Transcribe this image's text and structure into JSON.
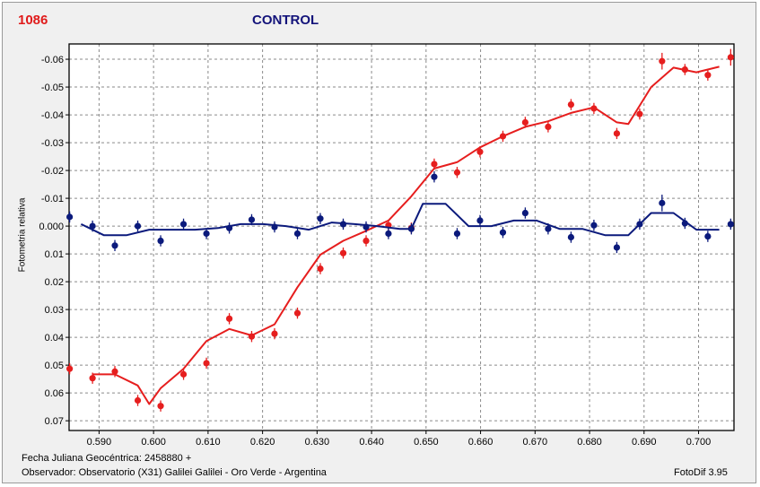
{
  "header": {
    "object_id": "1086",
    "title": "CONTROL"
  },
  "footer": {
    "jd_line": "Fecha Juliana Geocéntrica: 2458880 +",
    "observer_line": "Observador: Observatorio (X31) Galilei Galilei - Oro Verde - Argentina",
    "software": "FotoDif 3.95"
  },
  "colors": {
    "red_series": "#e61e1e",
    "blue_series": "#0b1a7c",
    "id_text": "#e01b1b",
    "title_text": "#13137a",
    "plot_background": "#ffffff",
    "grid": "#8a8a8a"
  },
  "chart_data": {
    "type": "scatter",
    "xlabel": "",
    "ylabel": "Fotometria relativa",
    "xlim": [
      0.5845,
      0.7065
    ],
    "ylim": [
      0.0735,
      -0.0655
    ],
    "y_inverted": true,
    "grid": true,
    "x_ticks": [
      0.59,
      0.6,
      0.61,
      0.62,
      0.63,
      0.64,
      0.65,
      0.66,
      0.67,
      0.68,
      0.69,
      0.7
    ],
    "x_tick_labels": [
      "0.590",
      "0.600",
      "0.610",
      "0.620",
      "0.630",
      "0.640",
      "0.650",
      "0.660",
      "0.670",
      "0.680",
      "0.690",
      "0.700"
    ],
    "y_ticks": [
      -0.06,
      -0.05,
      -0.04,
      -0.03,
      -0.02,
      -0.01,
      0.0,
      0.01,
      0.02,
      0.03,
      0.04,
      0.05,
      0.06,
      0.07
    ],
    "y_tick_labels": [
      "-0.06",
      "-0.05",
      "-0.04",
      "-0.03",
      "-0.02",
      "-0.01",
      "0.000",
      "0.01",
      "0.02",
      "0.03",
      "0.04",
      "0.05",
      "0.06",
      "0.07"
    ],
    "series": [
      {
        "color": "#e61e1e",
        "x": [
          0.5846,
          0.5888,
          0.5929,
          0.5971,
          0.6013,
          0.6055,
          0.6097,
          0.6139,
          0.618,
          0.6222,
          0.6264,
          0.6306,
          0.6348,
          0.639,
          0.6431,
          0.6473,
          0.6515,
          0.6557,
          0.6599,
          0.6641,
          0.6682,
          0.6724,
          0.6766,
          0.6808,
          0.685,
          0.6892,
          0.6933,
          0.6975,
          0.7017,
          0.7059
        ],
        "y": [
          0.0513,
          0.0547,
          0.0523,
          0.0627,
          0.0647,
          0.0533,
          0.0493,
          0.0333,
          0.0397,
          0.0387,
          0.0313,
          0.0153,
          0.0097,
          0.0053,
          -0.0003,
          0.0007,
          -0.0223,
          -0.0193,
          -0.0267,
          -0.0323,
          -0.0373,
          -0.0357,
          -0.0437,
          -0.0423,
          -0.0333,
          -0.0403,
          -0.0593,
          -0.0563,
          -0.0543,
          -0.0607
        ],
        "err": [
          0.002,
          0.002,
          0.002,
          0.002,
          0.002,
          0.002,
          0.002,
          0.002,
          0.002,
          0.002,
          0.002,
          0.002,
          0.002,
          0.002,
          0.002,
          0.002,
          0.002,
          0.002,
          0.002,
          0.002,
          0.002,
          0.002,
          0.002,
          0.002,
          0.002,
          0.002,
          0.003,
          0.002,
          0.002,
          0.003
        ],
        "trend": [
          0.0533,
          0.0533,
          0.0573,
          0.064,
          0.0583,
          0.0513,
          0.0413,
          0.037,
          0.0393,
          0.0353,
          0.022,
          0.0103,
          0.0053,
          0.0017,
          -0.002,
          -0.0107,
          -0.0207,
          -0.023,
          -0.0283,
          -0.0323,
          -0.0357,
          -0.0377,
          -0.0407,
          -0.0427,
          -0.0373,
          -0.0367,
          -0.05,
          -0.057,
          -0.0553,
          -0.0573
        ],
        "trend_x": [
          0.5888,
          0.5929,
          0.5971,
          0.5992,
          0.6013,
          0.6055,
          0.6097,
          0.6139,
          0.618,
          0.6222,
          0.6264,
          0.6306,
          0.6348,
          0.639,
          0.6431,
          0.6473,
          0.6515,
          0.6557,
          0.6599,
          0.6641,
          0.6682,
          0.6724,
          0.6766,
          0.6808,
          0.685,
          0.6871,
          0.6913,
          0.6954,
          0.6996,
          0.7038
        ]
      },
      {
        "color": "#0b1a7c",
        "x": [
          0.5846,
          0.5888,
          0.5929,
          0.5971,
          0.6013,
          0.6055,
          0.6097,
          0.6139,
          0.618,
          0.6222,
          0.6264,
          0.6306,
          0.6348,
          0.639,
          0.6431,
          0.6473,
          0.6515,
          0.6557,
          0.6599,
          0.6641,
          0.6682,
          0.6724,
          0.6766,
          0.6808,
          0.685,
          0.6892,
          0.6933,
          0.6975,
          0.7017,
          0.7059
        ],
        "y": [
          -0.0033,
          0.0,
          0.007,
          0.0,
          0.0053,
          -0.0007,
          0.0027,
          0.0007,
          -0.0023,
          0.0003,
          0.0027,
          -0.0027,
          -0.0007,
          0.0003,
          0.0027,
          0.001,
          -0.0177,
          0.0027,
          -0.002,
          0.0023,
          -0.0047,
          0.001,
          0.004,
          -0.0003,
          0.0077,
          -0.0007,
          -0.0083,
          -0.001,
          0.0037,
          -0.0007
        ],
        "err": [
          0.002,
          0.002,
          0.002,
          0.002,
          0.002,
          0.002,
          0.002,
          0.002,
          0.002,
          0.002,
          0.002,
          0.002,
          0.002,
          0.002,
          0.002,
          0.002,
          0.002,
          0.002,
          0.002,
          0.002,
          0.002,
          0.002,
          0.002,
          0.002,
          0.002,
          0.002,
          0.003,
          0.002,
          0.002,
          0.002
        ],
        "trend": [
          -0.0007,
          0.0033,
          0.0033,
          0.0013,
          0.0013,
          0.0013,
          0.0007,
          -0.0007,
          -0.0007,
          0.0,
          0.0013,
          -0.0013,
          -0.0007,
          0.0,
          0.001,
          0.001,
          -0.008,
          -0.008,
          0.0,
          0.0,
          -0.002,
          -0.002,
          0.001,
          0.001,
          0.0033,
          0.0033,
          -0.0047,
          -0.0047,
          0.0013,
          0.0013
        ],
        "trend_x": [
          0.5867,
          0.5909,
          0.595,
          0.5992,
          0.6034,
          0.6076,
          0.6118,
          0.616,
          0.6201,
          0.6243,
          0.6285,
          0.6327,
          0.6369,
          0.641,
          0.6452,
          0.6473,
          0.6494,
          0.6536,
          0.6578,
          0.662,
          0.6661,
          0.6703,
          0.6745,
          0.6787,
          0.6829,
          0.6871,
          0.6913,
          0.6954,
          0.6996,
          0.7038
        ]
      }
    ]
  }
}
